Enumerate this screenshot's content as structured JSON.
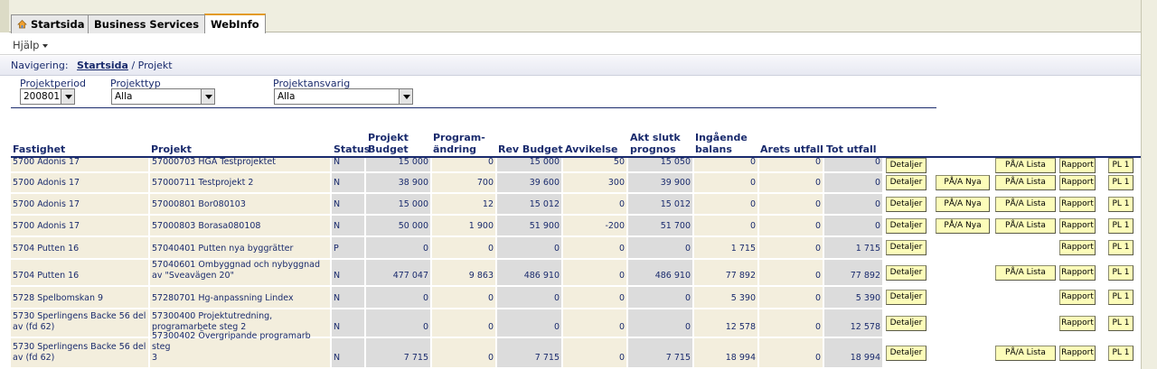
{
  "tabs": [
    {
      "label": "Startsida",
      "icon": "home-icon"
    },
    {
      "label": "Business Services"
    },
    {
      "label": "WebInfo",
      "active": true
    }
  ],
  "menu": {
    "help": "Hjälp"
  },
  "breadcrumb": {
    "prefix": "Navigering:",
    "home": "Startsida",
    "separator": "/",
    "current": "Projekt"
  },
  "filters": {
    "period": {
      "label": "Projektperiod",
      "value": "200801"
    },
    "type": {
      "label": "Projekttyp",
      "value": "Alla"
    },
    "responsible": {
      "label": "Projektansvarig",
      "value": "Alla"
    }
  },
  "columns": {
    "fastighet": "Fastighet",
    "projekt": "Projekt",
    "status": "Status",
    "budget": [
      "Projekt",
      "Budget"
    ],
    "andring": [
      "Program-",
      "ändring"
    ],
    "rev": "Rev Budget",
    "avvikelse": "Avvikelse",
    "prognos": [
      "Akt slutk",
      "prognos"
    ],
    "balans": [
      "Ingående",
      "balans"
    ],
    "arets": "Arets utfall",
    "tot": "Tot utfall"
  },
  "buttons": {
    "detaljer": "Detaljer",
    "pa_nya": "PÅ/A Nya",
    "pa_lista": "PÅ/A Lista",
    "rapport": "Rapport",
    "pl": "PL 1"
  },
  "rows": [
    {
      "fastighet": [
        "5700 Adonis 17"
      ],
      "projekt": [
        "57000703 HGA Testprojektet"
      ],
      "status": "N",
      "budget": "15 000",
      "andring": "0",
      "rev": "15 000",
      "avvikelse": "50",
      "prognos": "15 050",
      "balans": "0",
      "arets": "0",
      "tot": "0",
      "nya": false,
      "lista": true
    },
    {
      "fastighet": [
        "5700 Adonis 17"
      ],
      "projekt": [
        "57000711 Testprojekt 2"
      ],
      "status": "N",
      "budget": "38 900",
      "andring": "700",
      "rev": "39 600",
      "avvikelse": "300",
      "prognos": "39 900",
      "balans": "0",
      "arets": "0",
      "tot": "0",
      "nya": true,
      "lista": true
    },
    {
      "fastighet": [
        "5700 Adonis 17"
      ],
      "projekt": [
        "57000801 Bor080103"
      ],
      "status": "N",
      "budget": "15 000",
      "andring": "12",
      "rev": "15 012",
      "avvikelse": "0",
      "prognos": "15 012",
      "balans": "0",
      "arets": "0",
      "tot": "0",
      "nya": true,
      "lista": true
    },
    {
      "fastighet": [
        "5700 Adonis 17"
      ],
      "projekt": [
        "57000803 Borasa080108"
      ],
      "status": "N",
      "budget": "50 000",
      "andring": "1 900",
      "rev": "51 900",
      "avvikelse": "-200",
      "prognos": "51 700",
      "balans": "0",
      "arets": "0",
      "tot": "0",
      "nya": true,
      "lista": true
    },
    {
      "fastighet": [
        "5704 Putten 16"
      ],
      "projekt": [
        "57040401 Putten nya byggrätter"
      ],
      "status": "P",
      "budget": "0",
      "andring": "0",
      "rev": "0",
      "avvikelse": "0",
      "prognos": "0",
      "balans": "1 715",
      "arets": "0",
      "tot": "1 715",
      "nya": false,
      "lista": false
    },
    {
      "fastighet": [
        "5704 Putten 16"
      ],
      "projekt": [
        "57040601 Ombyggnad och nybyggnad",
        "av \"Sveavägen 20\""
      ],
      "status": "N",
      "budget": "477 047",
      "andring": "9 863",
      "rev": "486 910",
      "avvikelse": "0",
      "prognos": "486 910",
      "balans": "77 892",
      "arets": "0",
      "tot": "77 892",
      "nya": false,
      "lista": true
    },
    {
      "fastighet": [
        "5728 Spelbomskan 9"
      ],
      "projekt": [
        "57280701 Hg-anpassning Lindex"
      ],
      "status": "N",
      "budget": "0",
      "andring": "0",
      "rev": "0",
      "avvikelse": "0",
      "prognos": "0",
      "balans": "5 390",
      "arets": "0",
      "tot": "5 390",
      "nya": false,
      "lista": false
    },
    {
      "fastighet": [
        "5730 Sperlingens Backe 56 del",
        "av (fd 62)"
      ],
      "projekt": [
        "57300400 Projektutredning,",
        "programarbete steg 2"
      ],
      "status": "N",
      "budget": "0",
      "andring": "0",
      "rev": "0",
      "avvikelse": "0",
      "prognos": "0",
      "balans": "12 578",
      "arets": "0",
      "tot": "12 578",
      "nya": false,
      "lista": false
    },
    {
      "fastighet": [
        "5730 Sperlingens Backe 56 del",
        "av (fd 62)"
      ],
      "projekt": [
        "57300402 Övergripande programarb steg",
        "3"
      ],
      "status": "N",
      "budget": "7 715",
      "andring": "0",
      "rev": "7 715",
      "avvikelse": "0",
      "prognos": "7 715",
      "balans": "18 994",
      "arets": "0",
      "tot": "18 994",
      "nya": false,
      "lista": true
    }
  ]
}
